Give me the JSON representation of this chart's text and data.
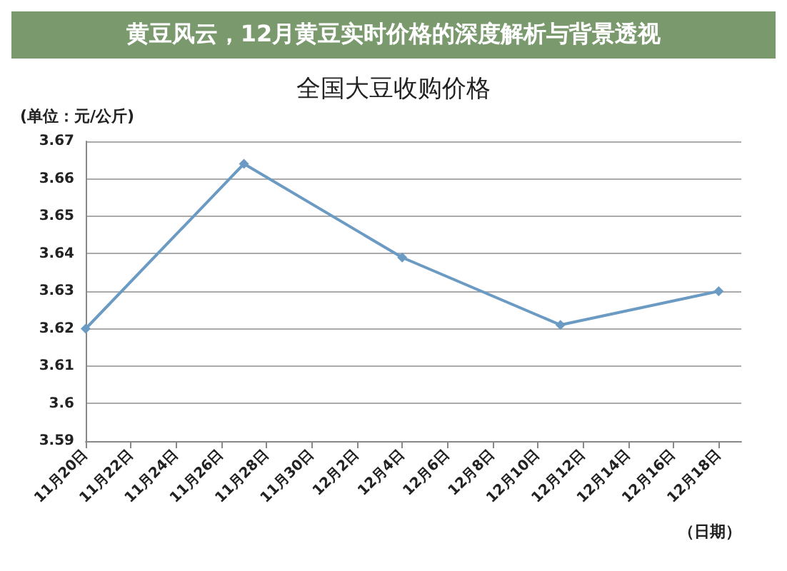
{
  "chart_data": {
    "type": "line",
    "title": "全国大豆收购价格",
    "ylabel": "(单位：元/公斤)",
    "xlabel": "（日期）",
    "annotations": [
      "黄豆风云，12月黄豆实时价格的深度解析与背景透视"
    ],
    "x": [
      "--11-20",
      "--11-27",
      "--12-04",
      "--12-11",
      "--12-18"
    ],
    "series": [
      {
        "color": "#6b9bc3",
        "values": [
          3.62,
          3.664,
          3.639,
          3.621,
          3.63
        ]
      }
    ],
    "xlim": [
      "--11-20",
      "--12-19"
    ],
    "xticks": [
      {
        "value": "--11-20",
        "label": "11月20日"
      },
      {
        "value": "--11-22",
        "label": "11月22日"
      },
      {
        "value": "--11-24",
        "label": "11月24日"
      },
      {
        "value": "--11-26",
        "label": "11月26日"
      },
      {
        "value": "--11-28",
        "label": "11月28日"
      },
      {
        "value": "--11-30",
        "label": "11月30日"
      },
      {
        "value": "--12-02",
        "label": "12月2日"
      },
      {
        "value": "--12-04",
        "label": "12月4日"
      },
      {
        "value": "--12-06",
        "label": "12月6日"
      },
      {
        "value": "--12-08",
        "label": "12月8日"
      },
      {
        "value": "--12-10",
        "label": "12月10日"
      },
      {
        "value": "--12-12",
        "label": "12月12日"
      },
      {
        "value": "--12-14",
        "label": "12月14日"
      },
      {
        "value": "--12-16",
        "label": "12月16日"
      },
      {
        "value": "--12-18",
        "label": "12月18日"
      }
    ],
    "ylim": [
      3.59,
      3.67
    ],
    "yticks": [
      3.59,
      3.6,
      3.61,
      3.62,
      3.63,
      3.64,
      3.65,
      3.66,
      3.67
    ],
    "grid": "y",
    "marker": "diamond",
    "line_style": "solid"
  }
}
